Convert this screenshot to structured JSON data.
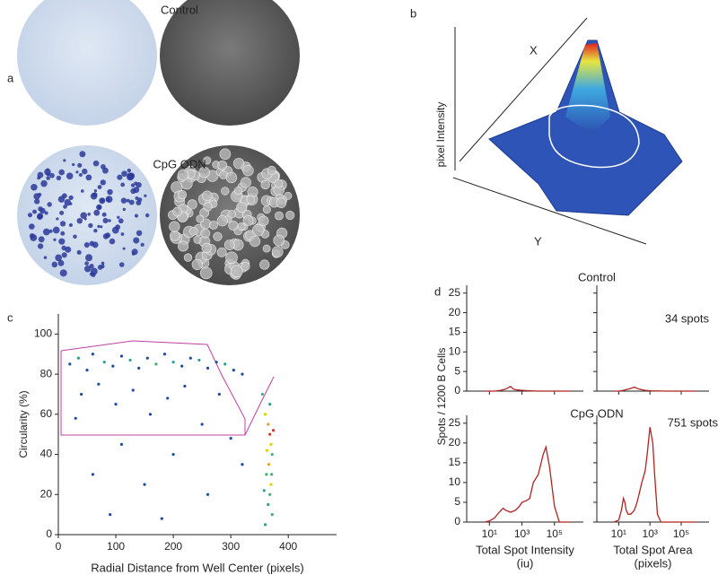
{
  "panel_labels": [
    "a",
    "b",
    "c",
    "d"
  ],
  "panel_a": {
    "top_label": "Control",
    "bottom_label": "CpG ODN"
  },
  "panel_b": {
    "x_label": "X",
    "y_label": "Y",
    "z_label": "pixel Intensity"
  },
  "panel_d": {
    "title_top": "Control",
    "title_bottom": "CpG ODN",
    "count_top": "34 spots",
    "count_bottom": "751 spots",
    "y_label": "Spots / 1200 B Cells"
  },
  "chart_data": [
    {
      "type": "scatter",
      "xlabel": [
        "Radial Distance from Well Center (pixels)"
      ],
      "ylabel": "Circularity (%)",
      "x": [
        20,
        35,
        50,
        60,
        80,
        95,
        110,
        125,
        140,
        155,
        170,
        185,
        200,
        215,
        230,
        245,
        260,
        275,
        290,
        305,
        320,
        40,
        70,
        100,
        130,
        160,
        190,
        220,
        250,
        280,
        30,
        110,
        200,
        300,
        60,
        150,
        260,
        90,
        320,
        180,
        355,
        360,
        365,
        368,
        370,
        372,
        366,
        362,
        370,
        368,
        365,
        372,
        360,
        368,
        374,
        363,
        371,
        358
      ],
      "values": [
        85,
        88,
        82,
        90,
        86,
        84,
        89,
        87,
        83,
        88,
        85,
        90,
        86,
        84,
        88,
        87,
        83,
        86,
        85,
        82,
        80,
        70,
        75,
        65,
        72,
        60,
        68,
        74,
        55,
        70,
        58,
        45,
        40,
        48,
        30,
        25,
        20,
        10,
        35,
        8,
        70,
        60,
        55,
        50,
        45,
        40,
        35,
        30,
        25,
        20,
        15,
        10,
        5,
        65,
        52,
        42,
        30,
        22
      ],
      "colors": [
        "#1f4e9c",
        "#2a9d8f",
        "#1f4e9c",
        "#1f4e9c",
        "#2a9d8f",
        "#1f4e9c",
        "#1f4e9c",
        "#2a9d8f",
        "#1f4e9c",
        "#1f4e9c",
        "#3cb371",
        "#1f4e9c",
        "#2a9d8f",
        "#1f4e9c",
        "#1f4e9c",
        "#2a9d8f",
        "#1f4e9c",
        "#1f4e9c",
        "#2a9d8f",
        "#1f4e9c",
        "#1f4e9c",
        "#1f4e9c",
        "#1f4e9c",
        "#1f4e9c",
        "#1f4e9c",
        "#1f4e9c",
        "#1f4e9c",
        "#1f4e9c",
        "#1f4e9c",
        "#1f4e9c",
        "#1f4e9c",
        "#1f4e9c",
        "#1f4e9c",
        "#1f4e9c",
        "#1f4e9c",
        "#1f4e9c",
        "#1f4e9c",
        "#1f4e9c",
        "#1f4e9c",
        "#1f4e9c",
        "#3cb371",
        "#d4d400",
        "#e8a020",
        "#e03020",
        "#d4d400",
        "#3cb371",
        "#e8a020",
        "#3cb371",
        "#d4d400",
        "#3cb371",
        "#2a9d8f",
        "#3cb371",
        "#2a9d8f",
        "#2a9d8f",
        "#e03020",
        "#d4d400",
        "#3cb371",
        "#2a9d8f"
      ],
      "xlim": [
        0,
        484
      ],
      "xticks": [
        0,
        100,
        200,
        300,
        400
      ],
      "ylim": [
        0,
        110
      ],
      "yticks": [
        0,
        20,
        40,
        60,
        80,
        100
      ]
    },
    {
      "type": "line",
      "color": "#b22222",
      "log_x": true,
      "xtick_labels": false,
      "ytick_labels": true,
      "x": [
        5,
        20,
        50,
        100,
        200,
        300,
        500,
        1000,
        3000,
        10000,
        100000,
        1000000
      ],
      "values": [
        0,
        0,
        0.2,
        0.5,
        1.2,
        0.5,
        0.3,
        0.2,
        0.1,
        0,
        0,
        0
      ],
      "xlim": [
        0.4,
        6000000
      ],
      "xticks": [
        {
          "value": 10,
          "label": "10¹"
        },
        {
          "value": 1000,
          "label": "10³"
        },
        {
          "value": 100000,
          "label": "10⁵"
        }
      ],
      "ylim": [
        0,
        27
      ],
      "yticks": [
        0,
        5,
        10,
        15,
        20,
        25
      ]
    },
    {
      "type": "line",
      "color": "#b22222",
      "log_x": true,
      "xtick_labels": false,
      "ytick_labels": false,
      "x": [
        5,
        10,
        20,
        50,
        100,
        200,
        500,
        1000,
        10000,
        100000,
        1000000
      ],
      "values": [
        0,
        0,
        0.2,
        0.6,
        1,
        0.5,
        0.2,
        0.1,
        0,
        0,
        0
      ],
      "xlim": [
        0.4,
        6000000
      ],
      "xticks": [
        {
          "value": 10,
          "label": "10¹"
        },
        {
          "value": 1000,
          "label": "10³"
        },
        {
          "value": 100000,
          "label": "10⁵"
        }
      ],
      "ylim": [
        0,
        27
      ],
      "yticks": [
        0,
        5,
        10,
        15,
        20,
        25
      ]
    },
    {
      "type": "line",
      "color": "#b22222",
      "log_x": true,
      "xtick_labels": true,
      "ytick_labels": true,
      "xlabel": [
        "Total Spot Intensity",
        "(iu)"
      ],
      "x": [
        5,
        10,
        20,
        40,
        70,
        100,
        200,
        400,
        700,
        1000,
        2000,
        3000,
        5000,
        10000,
        20000,
        30000,
        50000,
        100000,
        200000,
        1000000
      ],
      "values": [
        0,
        0.3,
        1,
        2.5,
        3.5,
        3,
        2.5,
        3,
        4,
        5,
        5.5,
        6,
        10,
        12,
        17,
        19,
        14,
        4,
        0,
        0
      ],
      "xlim": [
        0.4,
        6000000
      ],
      "xticks": [
        {
          "value": 10,
          "label": "10¹"
        },
        {
          "value": 1000,
          "label": "10³"
        },
        {
          "value": 100000,
          "label": "10⁵"
        }
      ],
      "ylim": [
        0,
        27
      ],
      "yticks": [
        0,
        5,
        10,
        15,
        20,
        25
      ]
    },
    {
      "type": "line",
      "color": "#b22222",
      "log_x": true,
      "xtick_labels": true,
      "ytick_labels": false,
      "xlabel": [
        "Total Spot Area",
        "(pixels)"
      ],
      "x": [
        5,
        10,
        15,
        20,
        25,
        30,
        40,
        60,
        100,
        150,
        200,
        300,
        500,
        700,
        1000,
        1500,
        2000,
        3000,
        5000,
        10000,
        100000,
        1000000
      ],
      "values": [
        0,
        0.5,
        3,
        6,
        5,
        3,
        2,
        2,
        3,
        5,
        7,
        10,
        13,
        18,
        24,
        20,
        12,
        2,
        0,
        0,
        0,
        0
      ],
      "xlim": [
        0.4,
        6000000
      ],
      "xticks": [
        {
          "value": 10,
          "label": "10¹"
        },
        {
          "value": 1000,
          "label": "10³"
        },
        {
          "value": 100000,
          "label": "10⁵"
        }
      ],
      "ylim": [
        0,
        27
      ],
      "yticks": [
        0,
        5,
        10,
        15,
        20,
        25
      ]
    }
  ]
}
